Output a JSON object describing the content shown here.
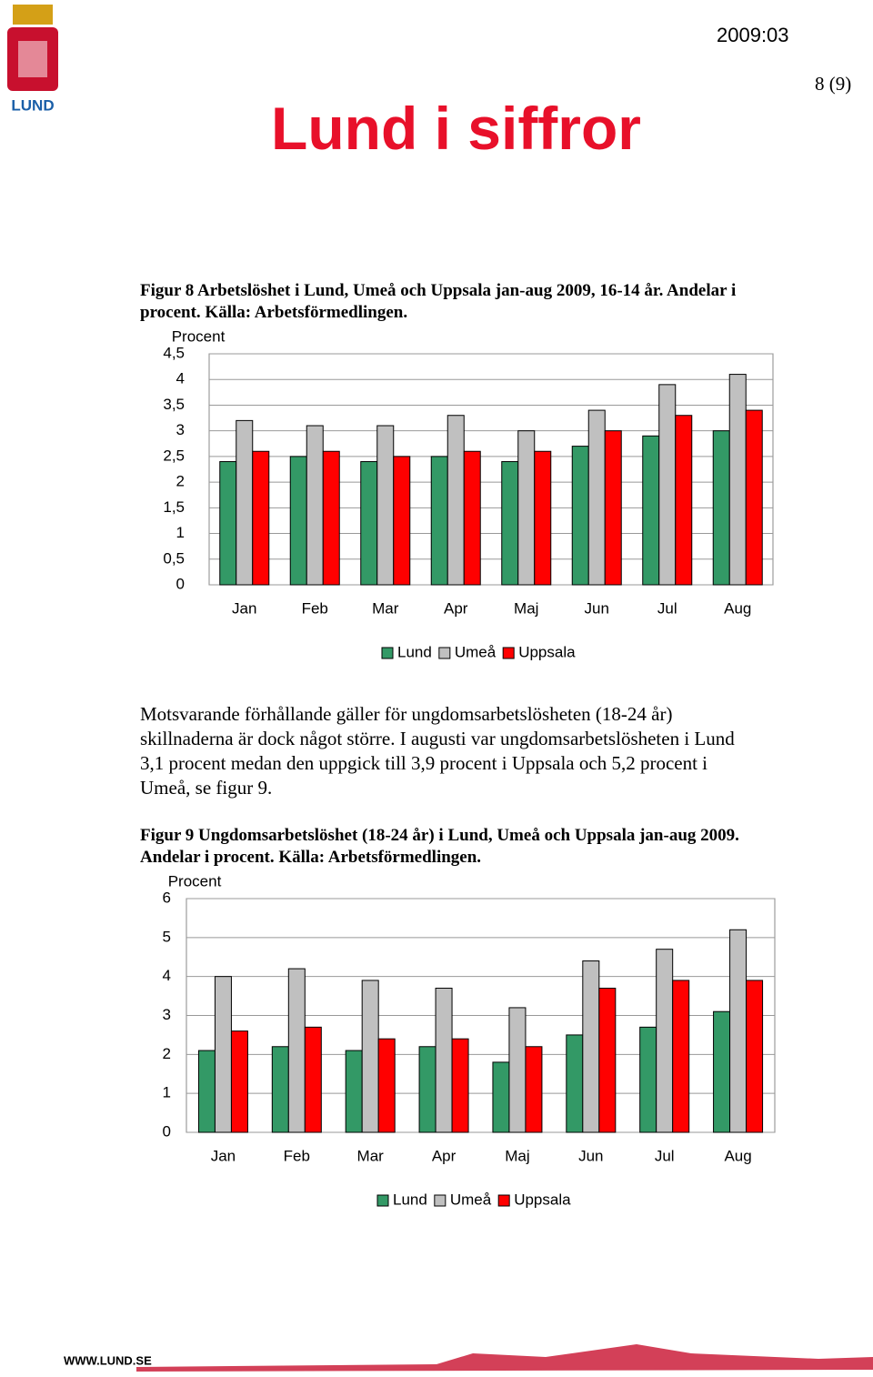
{
  "header": {
    "logo_text": "LUND",
    "date": "2009:03",
    "page": "8 (9)",
    "title": "Lund i siffror"
  },
  "figure8_caption": "Figur 8 Arbetslöshet i Lund, Umeå och Uppsala jan-aug 2009, 16-14 år. Andelar i procent. Källa: Arbetsförmedlingen.",
  "paragraph": "Motsvarande förhållande gäller för ungdomsarbetslösheten (18-24 år) skillnaderna är dock något större. I augusti var ungdomsarbetslösheten i Lund 3,1 procent medan den uppgick till 3,9 procent i Uppsala och 5,2 procent i Umeå, se figur 9.",
  "figure9_caption": "Figur 9 Ungdomsarbetslöshet (18-24 år) i Lund, Umeå och Uppsala jan-aug 2009. Andelar i procent. Källa: Arbetsförmedlingen.",
  "chart_data": [
    {
      "type": "bar",
      "y_label": "Procent",
      "categories": [
        "Jan",
        "Feb",
        "Mar",
        "Apr",
        "Maj",
        "Jun",
        "Jul",
        "Aug"
      ],
      "series": [
        {
          "name": "Lund",
          "color": "#339966",
          "values": [
            2.4,
            2.5,
            2.4,
            2.5,
            2.4,
            2.7,
            2.9,
            3.0
          ]
        },
        {
          "name": "Umeå",
          "color": "#c0c0c0",
          "values": [
            3.2,
            3.1,
            3.1,
            3.3,
            3.0,
            3.4,
            3.9,
            4.1
          ]
        },
        {
          "name": "Uppsala",
          "color": "#ff0000",
          "values": [
            2.6,
            2.6,
            2.5,
            2.6,
            2.6,
            3.0,
            3.3,
            3.4
          ]
        }
      ],
      "ylim": [
        0,
        4.5
      ],
      "yticks": [
        0,
        {
          "value": 0.5,
          "label": "0,5"
        },
        1,
        {
          "value": 1.5,
          "label": "1,5"
        },
        2,
        {
          "value": 2.5,
          "label": "2,5"
        },
        3,
        {
          "value": 3.5,
          "label": "3,5"
        },
        4,
        {
          "value": 4.5,
          "label": "4,5"
        }
      ],
      "grid": true,
      "legend": "bottom"
    },
    {
      "type": "bar",
      "y_label": "Procent",
      "categories": [
        "Jan",
        "Feb",
        "Mar",
        "Apr",
        "Maj",
        "Jun",
        "Jul",
        "Aug"
      ],
      "series": [
        {
          "name": "Lund",
          "color": "#339966",
          "values": [
            2.1,
            2.2,
            2.1,
            2.2,
            1.8,
            2.5,
            2.7,
            3.1
          ]
        },
        {
          "name": "Umeå",
          "color": "#c0c0c0",
          "values": [
            4.0,
            4.2,
            3.9,
            3.7,
            3.2,
            4.4,
            4.7,
            5.2
          ]
        },
        {
          "name": "Uppsala",
          "color": "#ff0000",
          "values": [
            2.6,
            2.7,
            2.4,
            2.4,
            2.2,
            3.7,
            3.9,
            3.9
          ]
        }
      ],
      "ylim": [
        0,
        6
      ],
      "yticks": [
        0,
        1,
        2,
        3,
        4,
        5,
        6
      ],
      "grid": true,
      "legend": "bottom"
    }
  ],
  "footer": {
    "url": "WWW.LUND.SE"
  }
}
